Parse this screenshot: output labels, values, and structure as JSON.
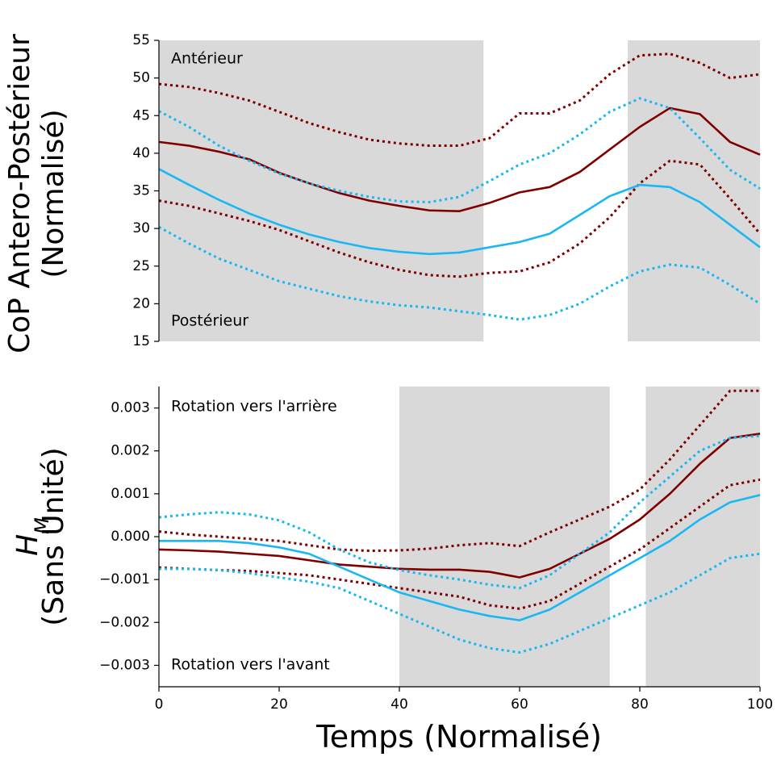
{
  "chart_data": [
    {
      "type": "line",
      "ylabel": [
        "CoP Antero-Postérieur",
        "(Normalisé)"
      ],
      "annotations": [
        "Antérieur",
        "Postérieur"
      ],
      "x": [
        0,
        5,
        10,
        15,
        20,
        25,
        30,
        35,
        40,
        45,
        50,
        55,
        60,
        65,
        70,
        75,
        80,
        85,
        90,
        95,
        100
      ],
      "xlim": [
        0,
        100
      ],
      "ylim": [
        15,
        55
      ],
      "yticks": [
        15,
        20,
        25,
        30,
        35,
        40,
        45,
        50,
        55
      ],
      "shaded_regions": [
        [
          0,
          54
        ],
        [
          78,
          100
        ]
      ],
      "shade_color": "#d9d9d9",
      "series": [
        {
          "color": "#800000",
          "style": "solid",
          "values": [
            41.5,
            41.0,
            40.2,
            39.2,
            37.4,
            36.0,
            34.7,
            33.7,
            33.0,
            32.4,
            32.3,
            33.4,
            34.8,
            35.5,
            37.5,
            40.5,
            43.5,
            46.0,
            45.2,
            41.5,
            39.8
          ]
        },
        {
          "color": "#800000",
          "style": "dotted",
          "values": [
            49.2,
            48.8,
            48.0,
            47.0,
            45.5,
            44.0,
            42.8,
            41.8,
            41.3,
            41.0,
            41.0,
            42.0,
            45.3,
            45.3,
            47.0,
            50.5,
            53.0,
            53.2,
            52.0,
            50.0,
            50.5
          ]
        },
        {
          "color": "#800000",
          "style": "dotted",
          "values": [
            33.7,
            33.0,
            32.0,
            31.0,
            29.8,
            28.3,
            26.8,
            25.5,
            24.5,
            23.8,
            23.6,
            24.1,
            24.3,
            25.5,
            28.0,
            31.5,
            36.0,
            39.0,
            38.5,
            34.0,
            29.3
          ]
        },
        {
          "color": "#1ab8f2",
          "style": "solid",
          "values": [
            37.9,
            35.8,
            33.8,
            32.0,
            30.5,
            29.2,
            28.2,
            27.4,
            26.9,
            26.6,
            26.8,
            27.5,
            28.2,
            29.3,
            31.8,
            34.3,
            35.8,
            35.5,
            33.5,
            30.5,
            27.5
          ]
        },
        {
          "color": "#1ab8f2",
          "style": "dotted",
          "values": [
            45.6,
            43.5,
            41.0,
            39.0,
            37.3,
            36.0,
            35.0,
            34.2,
            33.6,
            33.5,
            34.2,
            36.3,
            38.5,
            40.0,
            42.5,
            45.5,
            47.3,
            46.0,
            42.0,
            37.8,
            35.3
          ]
        },
        {
          "color": "#1ab8f2",
          "style": "dotted",
          "values": [
            30.2,
            28.0,
            26.0,
            24.5,
            23.0,
            22.0,
            21.0,
            20.3,
            19.8,
            19.5,
            19.0,
            18.5,
            17.9,
            18.5,
            20.0,
            22.3,
            24.3,
            25.2,
            24.8,
            22.5,
            20.0
          ]
        }
      ]
    },
    {
      "type": "line",
      "ylabel": {
        "symbol": "H",
        "subscript": "M",
        "text": "(Sans Unité)"
      },
      "xlabel": "Temps (Normalisé)",
      "annotations": [
        "Rotation vers l'arrière",
        "Rotation vers l'avant"
      ],
      "x": [
        0,
        5,
        10,
        15,
        20,
        25,
        30,
        35,
        40,
        45,
        50,
        55,
        60,
        65,
        70,
        75,
        80,
        85,
        90,
        95,
        100
      ],
      "xlim": [
        0,
        100
      ],
      "xticks": [
        0,
        20,
        40,
        60,
        80,
        100
      ],
      "ylim": [
        -0.0035,
        0.0035
      ],
      "yticks": [
        {
          "value": -0.003,
          "label": "−0.003"
        },
        {
          "value": -0.002,
          "label": "−0.002"
        },
        {
          "value": -0.001,
          "label": "−0.001"
        },
        {
          "value": 0,
          "label": "0.000"
        },
        0.001,
        0.002,
        0.003
      ],
      "shaded_regions": [
        [
          40,
          75
        ],
        [
          81,
          100
        ]
      ],
      "shade_color": "#d9d9d9",
      "series": [
        {
          "color": "#800000",
          "style": "solid",
          "values": [
            -0.0003,
            -0.00032,
            -0.00035,
            -0.0004,
            -0.00045,
            -0.00055,
            -0.00065,
            -0.0007,
            -0.00075,
            -0.00077,
            -0.00077,
            -0.00082,
            -0.00095,
            -0.00075,
            -0.0004,
            -5e-05,
            0.0004,
            0.001,
            0.0017,
            0.0023,
            0.0024
          ]
        },
        {
          "color": "#800000",
          "style": "dotted",
          "values": [
            0.00012,
            5e-05,
            0,
            -5e-05,
            -0.0001,
            -0.0002,
            -0.0003,
            -0.00033,
            -0.00032,
            -0.00028,
            -0.0002,
            -0.00015,
            -0.00022,
            0.0001,
            0.0004,
            0.0007,
            0.0011,
            0.0018,
            0.0026,
            0.0034,
            0.0034
          ]
        },
        {
          "color": "#800000",
          "style": "dotted",
          "values": [
            -0.00072,
            -0.00075,
            -0.00078,
            -0.0008,
            -0.00085,
            -0.0009,
            -0.001,
            -0.0011,
            -0.0012,
            -0.0013,
            -0.0014,
            -0.0016,
            -0.00168,
            -0.0015,
            -0.0011,
            -0.0007,
            -0.0003,
            0.0002,
            0.0007,
            0.0012,
            0.00133
          ]
        },
        {
          "color": "#1ab8f2",
          "style": "solid",
          "values": [
            -0.0001,
            -0.0001,
            -0.0001,
            -0.00015,
            -0.00025,
            -0.0004,
            -0.0007,
            -0.001,
            -0.0013,
            -0.0015,
            -0.0017,
            -0.00185,
            -0.00195,
            -0.0017,
            -0.0013,
            -0.0009,
            -0.0005,
            -0.0001,
            0.0004,
            0.0008,
            0.00097
          ]
        },
        {
          "color": "#1ab8f2",
          "style": "dotted",
          "values": [
            0.00045,
            0.00052,
            0.00057,
            0.00052,
            0.00038,
            0.0001,
            -0.0003,
            -0.0006,
            -0.00078,
            -0.0009,
            -0.001,
            -0.00112,
            -0.0012,
            -0.0009,
            -0.0004,
            0.0001,
            0.0008,
            0.0014,
            0.002,
            0.0023,
            0.00235
          ]
        },
        {
          "color": "#1ab8f2",
          "style": "dotted",
          "values": [
            -0.00075,
            -0.00075,
            -0.00078,
            -0.00085,
            -0.00095,
            -0.00105,
            -0.0012,
            -0.0015,
            -0.0018,
            -0.0021,
            -0.0024,
            -0.0026,
            -0.0027,
            -0.0025,
            -0.0022,
            -0.0019,
            -0.0016,
            -0.0013,
            -0.0009,
            -0.0005,
            -0.0004
          ]
        }
      ]
    }
  ]
}
